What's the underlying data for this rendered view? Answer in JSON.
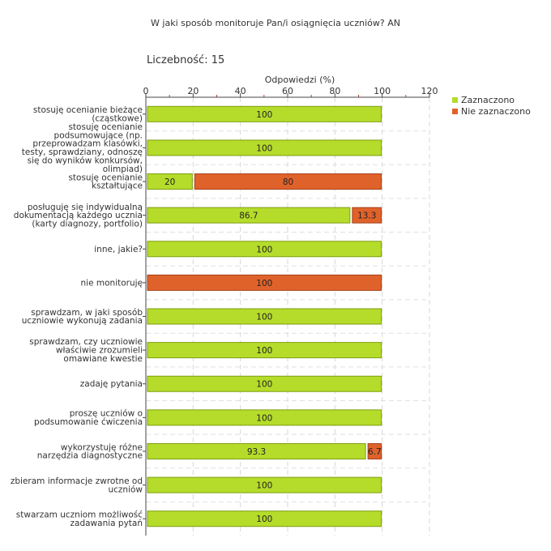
{
  "header": {
    "title": "W jaki sposób monitoruje Pan/i osiągnięcia uczniów?  AN",
    "count_label": "Liczebność:",
    "count_value": "15"
  },
  "chart_data": {
    "type": "bar",
    "orientation": "horizontal",
    "stacked": true,
    "xlabel": "Odpowiedzi (%)",
    "xlim": [
      0,
      120
    ],
    "xticks": [
      0,
      20,
      40,
      60,
      80,
      100,
      120
    ],
    "grid": true,
    "legend_position": "top-right",
    "categories": [
      [
        "stosuję ocenianie bieżące",
        "(cząstkowe)"
      ],
      [
        "stosuję ocenianie",
        "podsumowujące (np.",
        "przeprowadzam klasówki,",
        "testy, sprawdziany, odnoszę",
        "się do wyników konkursów,",
        "olimpiad)"
      ],
      [
        "stosuję ocenianie",
        "kształtujące"
      ],
      [
        "posługuję się indywidualną",
        "dokumentacją każdego ucznia",
        "(karty diagnozy, portfolio)"
      ],
      [
        "inne, jakie?"
      ],
      [
        "nie monitoruję"
      ],
      [
        "sprawdzam, w jaki sposób",
        "uczniowie wykonują zadania"
      ],
      [
        "sprawdzam, czy uczniowie",
        "właściwie zrozumieli",
        "omawiane kwestie"
      ],
      [
        "zadaję pytania"
      ],
      [
        "proszę uczniów o",
        "podsumowanie ćwiczenia"
      ],
      [
        "wykorzystuję różne",
        "narzędzia diagnostyczne"
      ],
      [
        "zbieram informacje zwrotne od",
        "uczniów"
      ],
      [
        "stwarzam uczniom możliwość",
        "zadawania pytań"
      ]
    ],
    "series": [
      {
        "name": "Zaznaczono",
        "color": "#b5dc2a",
        "stroke": "#7e9e10",
        "values": [
          100,
          100,
          20,
          86.7,
          100,
          0,
          100,
          100,
          100,
          100,
          93.3,
          100,
          100
        ],
        "labels": [
          "100",
          "100",
          "20",
          "86.7",
          "100",
          "",
          "100",
          "100",
          "100",
          "100",
          "93.3",
          "100",
          "100"
        ]
      },
      {
        "name": "Nie zaznaczono",
        "color": "#e0622b",
        "stroke": "#a3401a",
        "values": [
          0,
          0,
          80,
          13.3,
          0,
          100,
          0,
          0,
          0,
          0,
          6.7,
          0,
          0
        ],
        "labels": [
          "",
          "",
          "80",
          "13.3",
          "",
          "100",
          "",
          "",
          "",
          "",
          "6.7",
          "",
          ""
        ]
      }
    ]
  }
}
